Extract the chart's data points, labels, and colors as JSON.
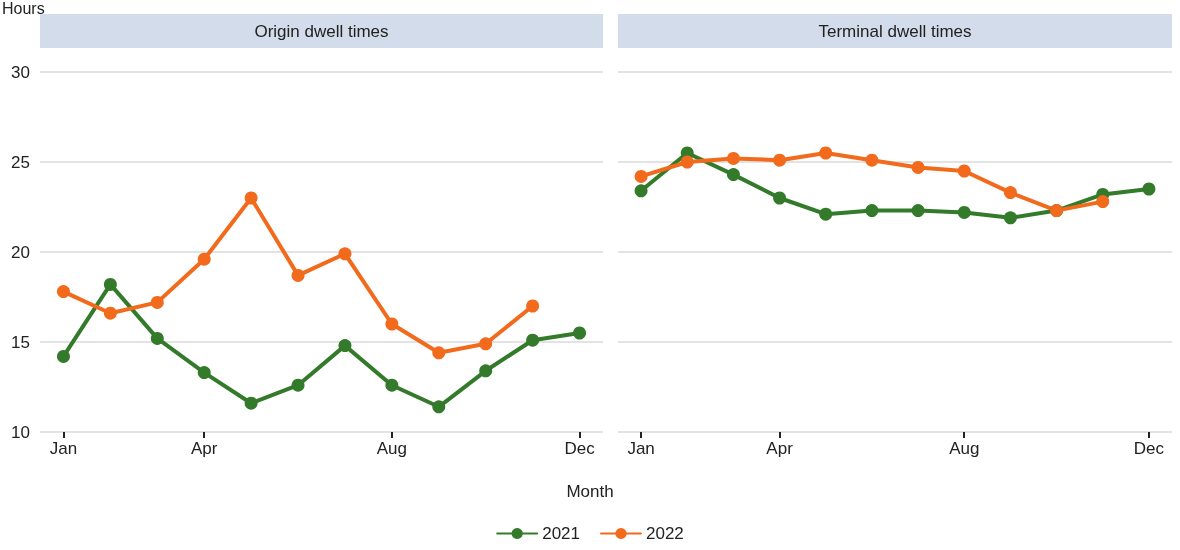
{
  "chart_data": [
    {
      "type": "line",
      "title": "Origin dwell times",
      "ylabel": "Hours",
      "xlabel": "Month",
      "categories": [
        "Jan",
        null,
        null,
        "Apr",
        null,
        null,
        null,
        "Aug",
        null,
        null,
        null,
        "Dec"
      ],
      "series": [
        {
          "name": "2021",
          "color": "#337a2a",
          "values": [
            14.2,
            18.2,
            15.2,
            13.3,
            11.6,
            12.6,
            14.8,
            12.6,
            11.4,
            13.4,
            15.1,
            15.5
          ]
        },
        {
          "name": "2022",
          "color": "#f26a1b",
          "values": [
            17.8,
            16.6,
            17.2,
            19.6,
            23.0,
            18.7,
            19.9,
            16.0,
            14.4,
            14.9,
            17.0,
            null
          ]
        }
      ],
      "ylim": [
        10,
        30
      ],
      "yticks": [
        10,
        15,
        20,
        25,
        30
      ],
      "grid": "y",
      "legend": "bottom",
      "marker": "circle",
      "line_style": "solid"
    },
    {
      "type": "line",
      "title": "Terminal dwell times",
      "categories": [
        "Jan",
        null,
        null,
        "Apr",
        null,
        null,
        null,
        "Aug",
        null,
        null,
        null,
        "Dec"
      ],
      "series": [
        {
          "name": "2021",
          "color": "#337a2a",
          "values": [
            23.4,
            25.5,
            24.3,
            23.0,
            22.1,
            22.3,
            22.3,
            22.2,
            21.9,
            22.3,
            23.2,
            23.5
          ]
        },
        {
          "name": "2022",
          "color": "#f26a1b",
          "values": [
            24.2,
            25.0,
            25.2,
            25.1,
            25.5,
            25.1,
            24.7,
            24.5,
            23.3,
            22.3,
            22.8,
            null
          ]
        }
      ],
      "ylim": [
        10,
        30
      ],
      "yticks": [
        10,
        15,
        20,
        25,
        30
      ],
      "grid": "y",
      "tick_labels": "x",
      "marker": "circle",
      "line_style": "solid"
    }
  ]
}
